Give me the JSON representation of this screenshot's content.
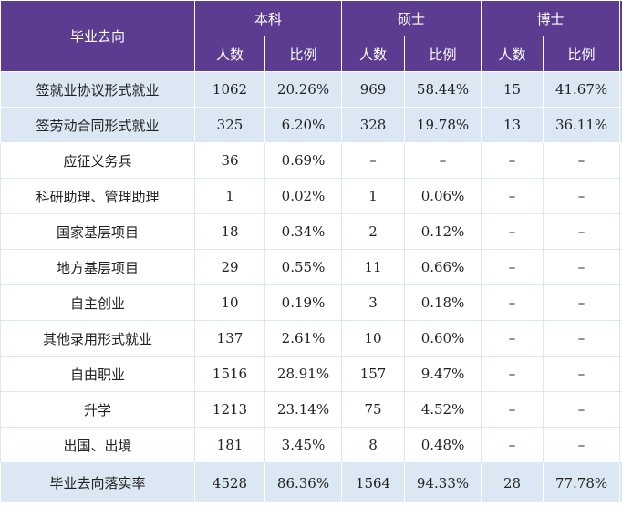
{
  "header": {
    "destination": "毕业去向",
    "groups": [
      "本科",
      "硕士",
      "博士"
    ],
    "sub": [
      "人数",
      "比例",
      "人数",
      "比例",
      "人数",
      "比例"
    ]
  },
  "rows": [
    {
      "name": "签就业协议形式就业",
      "cells": [
        "1062",
        "20.26%",
        "969",
        "58.44%",
        "15",
        "41.67%"
      ]
    },
    {
      "name": "签劳动合同形式就业",
      "cells": [
        "325",
        "6.20%",
        "328",
        "19.78%",
        "13",
        "36.11%"
      ]
    },
    {
      "name": "应征义务兵",
      "cells": [
        "36",
        "0.69%",
        "–",
        "–",
        "–",
        "–"
      ]
    },
    {
      "name": "科研助理、管理助理",
      "cells": [
        "1",
        "0.02%",
        "1",
        "0.06%",
        "–",
        "–"
      ]
    },
    {
      "name": "国家基层项目",
      "cells": [
        "18",
        "0.34%",
        "2",
        "0.12%",
        "–",
        "–"
      ]
    },
    {
      "name": "地方基层项目",
      "cells": [
        "29",
        "0.55%",
        "11",
        "0.66%",
        "–",
        "–"
      ]
    },
    {
      "name": "自主创业",
      "cells": [
        "10",
        "0.19%",
        "3",
        "0.18%",
        "–",
        "–"
      ]
    },
    {
      "name": "其他录用形式就业",
      "cells": [
        "137",
        "2.61%",
        "10",
        "0.60%",
        "–",
        "–"
      ]
    },
    {
      "name": "自由职业",
      "cells": [
        "1516",
        "28.91%",
        "157",
        "9.47%",
        "–",
        "–"
      ]
    },
    {
      "name": "升学",
      "cells": [
        "1213",
        "23.14%",
        "75",
        "4.52%",
        "–",
        "–"
      ]
    },
    {
      "name": "出国、出境",
      "cells": [
        "181",
        "3.45%",
        "8",
        "0.48%",
        "–",
        "–"
      ]
    },
    {
      "name": "毕业去向落实率",
      "cells": [
        "4528",
        "86.36%",
        "1564",
        "94.33%",
        "28",
        "77.78%"
      ]
    }
  ],
  "colors": {
    "header_bg": "#5b3c91",
    "row_tint": "#dce7f4"
  }
}
